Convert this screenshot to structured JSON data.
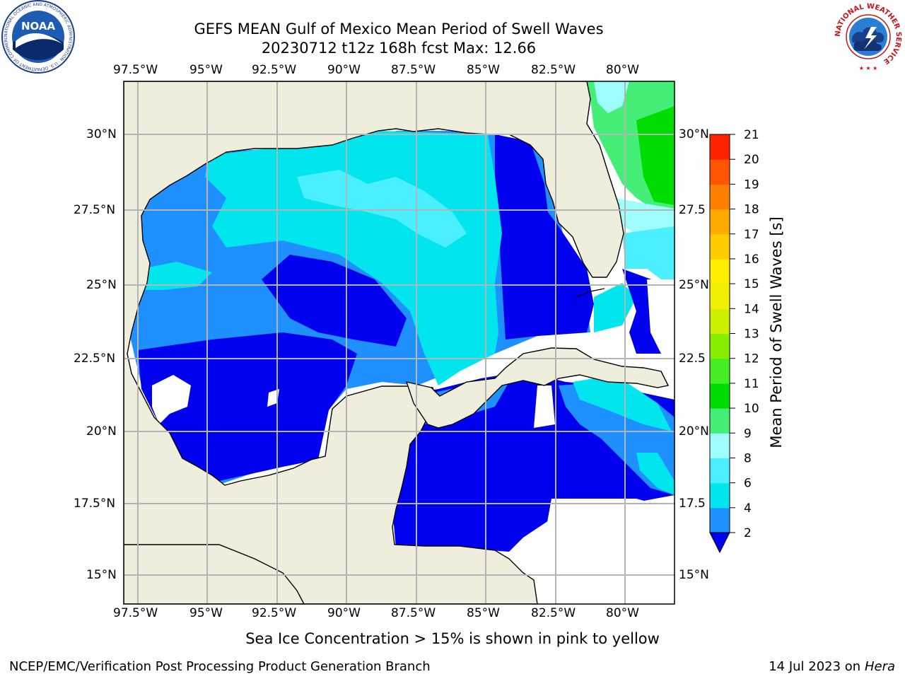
{
  "header": {
    "title_line1": "GEFS MEAN Gulf of Mexico Mean Period of Swell Waves",
    "title_line2": "20230712 t12z 168h fcst   Max: 12.66"
  },
  "logos": {
    "left": "NOAA",
    "left_ring": "NATIONAL OCEANIC AND ATMOSPHERIC ADMINISTRATION · U.S. DEPARTMENT OF COMMERCE",
    "right_ring": "NATIONAL WEATHER SERVICE"
  },
  "map": {
    "lon_ticks": [
      "97.5°W",
      "95°W",
      "92.5°W",
      "90°W",
      "87.5°W",
      "85°W",
      "82.5°W",
      "80°W"
    ],
    "lat_ticks_left": [
      "30°N",
      "27.5°N",
      "25°N",
      "22.5°N",
      "20°N",
      "17.5°N",
      "15°N"
    ],
    "lat_ticks_right": [
      "30°N",
      "27.5",
      "25°N",
      "22.5",
      "20°N",
      "17.5",
      "15°N"
    ],
    "extent": {
      "lon_min": -98.0,
      "lon_max": -78.2,
      "lat_min": 14.0,
      "lat_max": 31.8
    },
    "colors": {
      "land": "#efeddc",
      "grid": "#b4b4b4",
      "coast": "#000000"
    }
  },
  "colorbar": {
    "label": "Mean Period of Swell Waves [s]",
    "ticks": [
      "2",
      "4",
      "6",
      "8",
      "9",
      "10",
      "11",
      "12",
      "13",
      "14",
      "15",
      "16",
      "17",
      "18",
      "19",
      "20",
      "21"
    ],
    "colors": [
      "#0000ee",
      "#1e90ff",
      "#00e5ee",
      "#4af0ff",
      "#9ffdfd",
      "#44ee77",
      "#00dd00",
      "#44ee22",
      "#88ee00",
      "#ccf000",
      "#f0f000",
      "#ffee00",
      "#ffcc00",
      "#ffaa00",
      "#ff7f00",
      "#ff5500",
      "#ff2200",
      "#ee0000"
    ]
  },
  "footer": {
    "note": "Sea Ice Concentration > 15% is shown in pink to yellow",
    "left": "NCEP/EMC/Verification Post Processing Product Generation Branch",
    "right_prefix": "14 Jul 2023 on ",
    "right_host": "Hera"
  }
}
